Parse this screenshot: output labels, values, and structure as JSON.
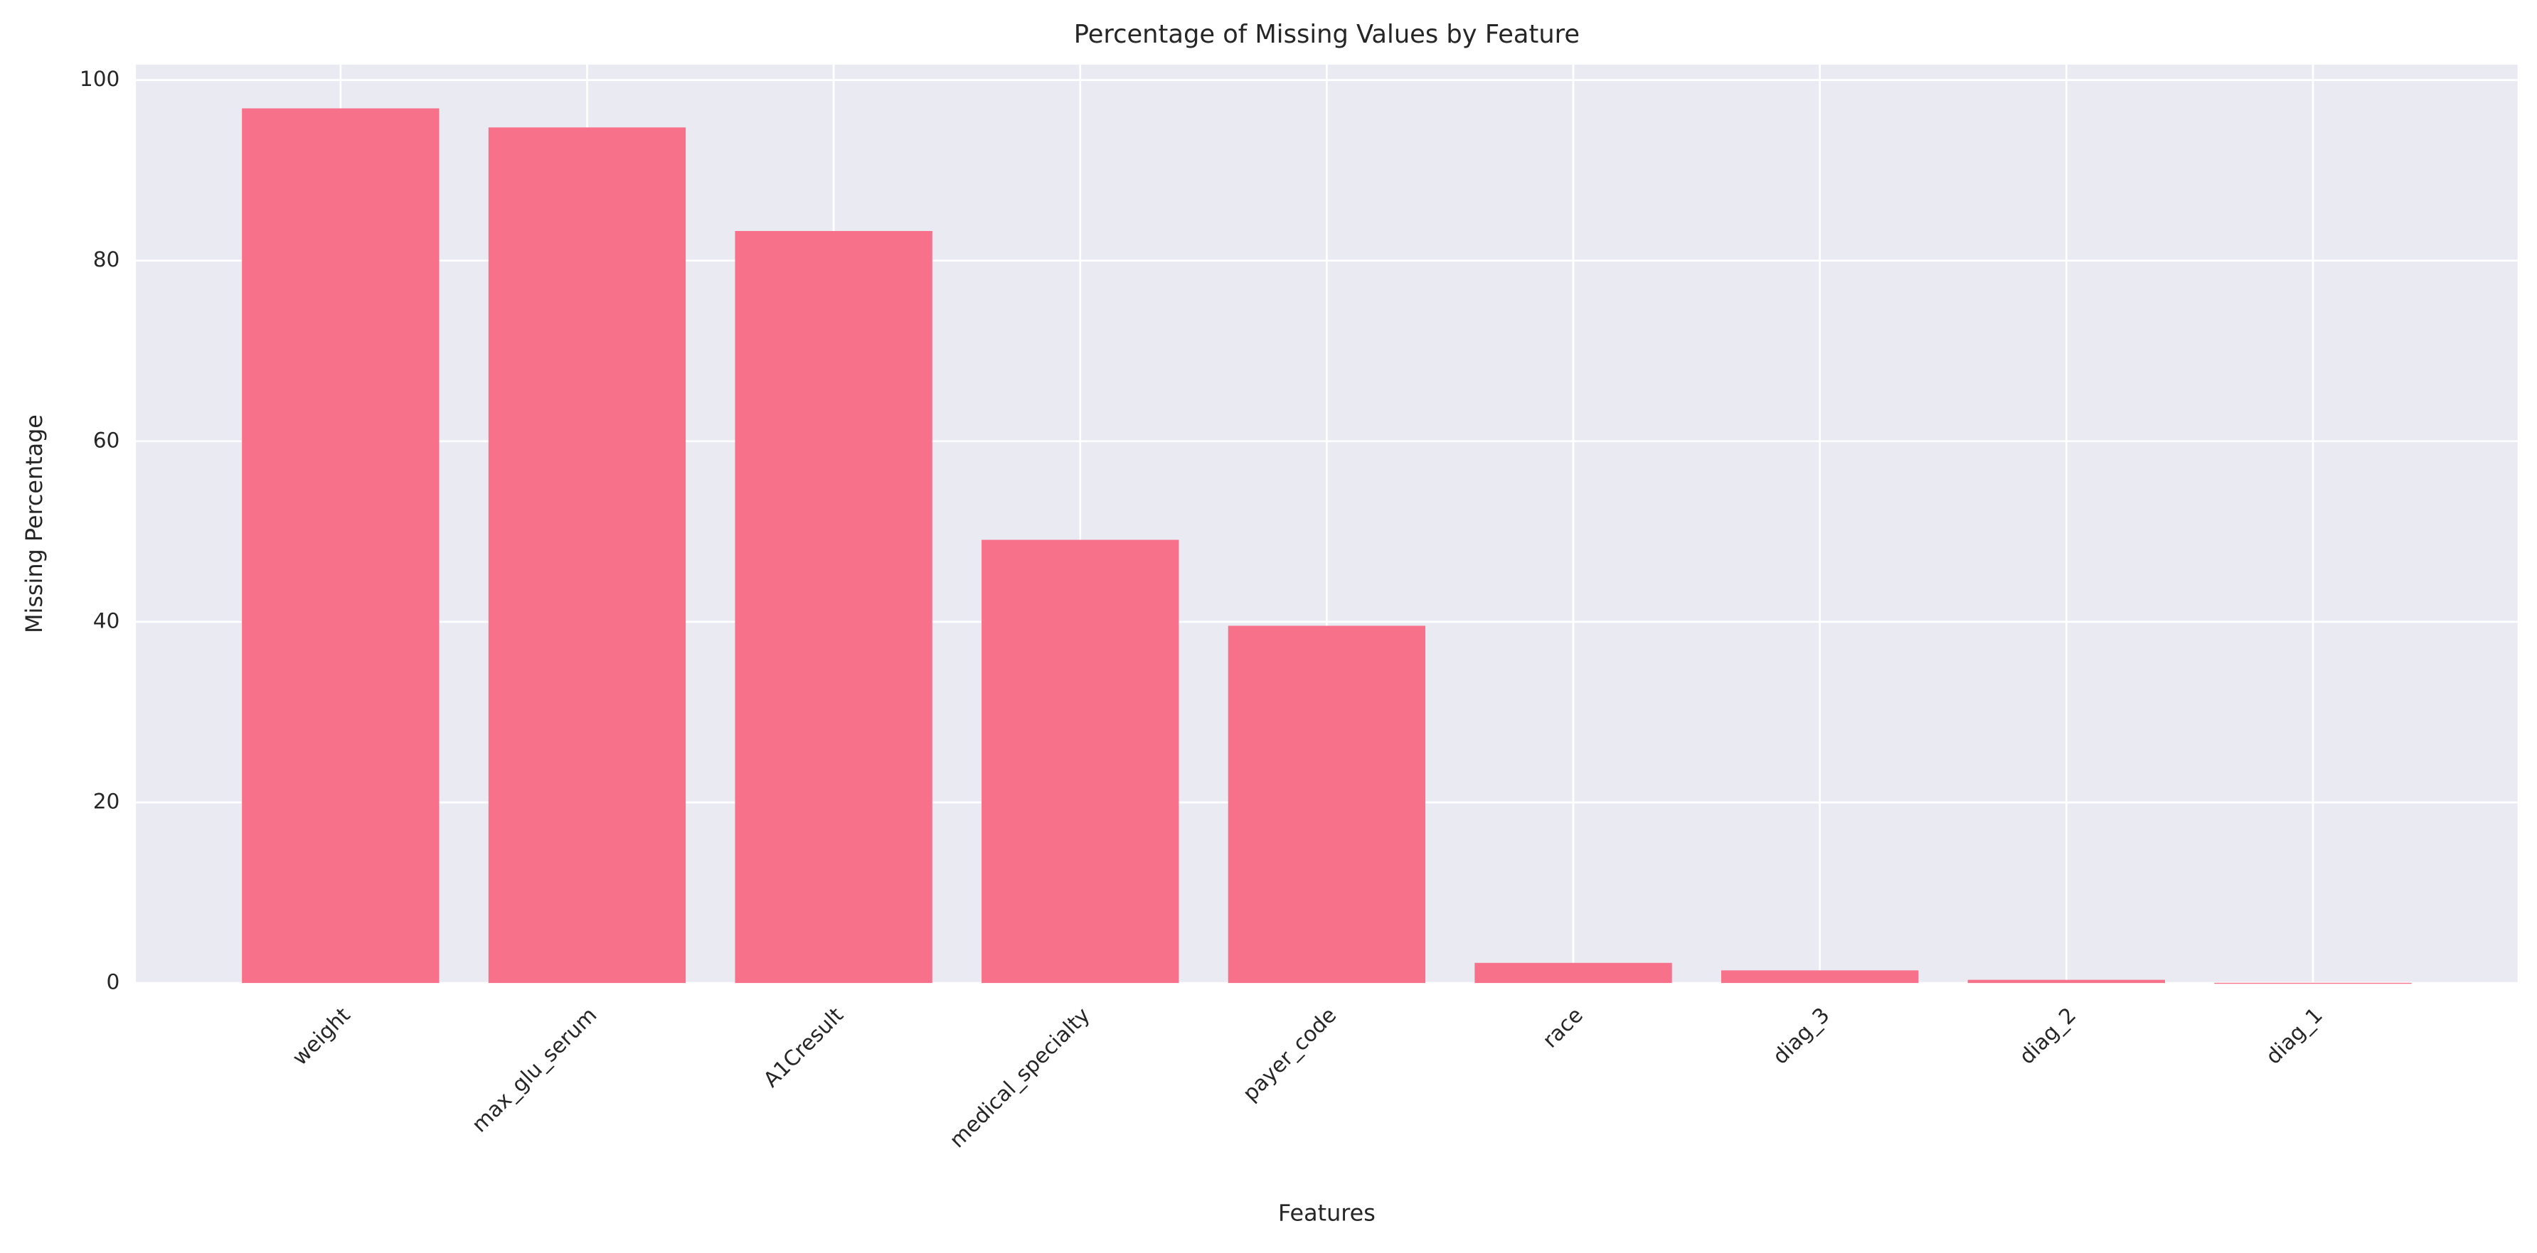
{
  "chart_data": {
    "type": "bar",
    "title": "Percentage of Missing Values by Feature",
    "x_label": "Features",
    "y_label": "Missing Percentage",
    "categories": [
      "weight",
      "max_glu_serum",
      "A1Cresult",
      "medical_specialty",
      "payer_code",
      "race",
      "diag_3",
      "diag_2",
      "diag_1"
    ],
    "values": [
      96.86,
      94.75,
      83.28,
      49.08,
      39.56,
      2.23,
      1.4,
      0.35,
      0.02
    ],
    "color": "#f7718b",
    "ylim": [
      0,
      101.7
    ],
    "yticks": [
      0,
      20,
      40,
      60,
      80,
      100
    ],
    "grid": true
  }
}
